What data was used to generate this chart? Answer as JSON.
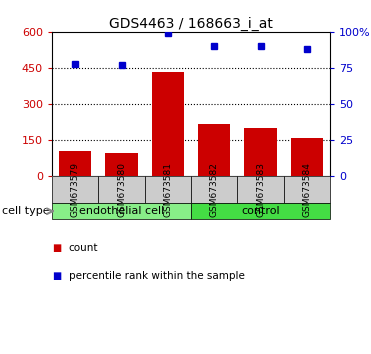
{
  "title": "GDS4463 / 168663_i_at",
  "samples": [
    "GSM673579",
    "GSM673580",
    "GSM673581",
    "GSM673582",
    "GSM673583",
    "GSM673584"
  ],
  "counts": [
    105,
    95,
    435,
    215,
    200,
    160
  ],
  "percentiles": [
    78,
    77,
    99,
    90,
    90,
    88
  ],
  "bar_color": "#cc0000",
  "dot_color": "#0000cc",
  "left_ylim": [
    0,
    600
  ],
  "left_yticks": [
    0,
    150,
    300,
    450,
    600
  ],
  "right_ylim": [
    0,
    100
  ],
  "right_yticks": [
    0,
    25,
    50,
    75,
    100
  ],
  "right_yticklabels": [
    "0",
    "25",
    "50",
    "75",
    "100%"
  ],
  "groups": [
    {
      "label": "endothelial cell",
      "indices": [
        0,
        1,
        2
      ],
      "color": "#88ee88"
    },
    {
      "label": "control",
      "indices": [
        3,
        4,
        5
      ],
      "color": "#44dd44"
    }
  ],
  "cell_type_label": "cell type",
  "legend_count_label": "count",
  "legend_pct_label": "percentile rank within the sample",
  "bg_color": "#ffffff",
  "sample_box_bg": "#cccccc",
  "title_fontsize": 10,
  "axis_fontsize": 8,
  "tick_fontsize": 8,
  "sample_fontsize": 6.5,
  "group_fontsize": 8,
  "legend_fontsize": 7.5,
  "cell_type_fontsize": 8
}
